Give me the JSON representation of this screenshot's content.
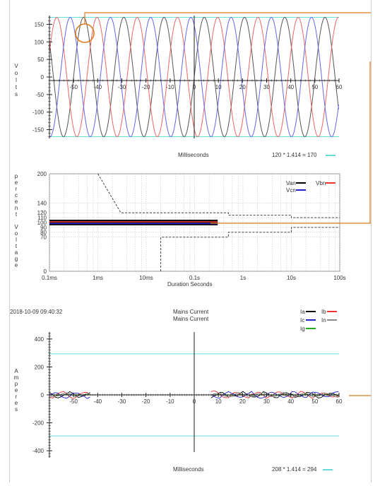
{
  "voltage_chart": {
    "ylabel_letters": [
      "V",
      "o",
      "l",
      "t",
      "s"
    ],
    "xlabel": "Milliseconds",
    "formula": "120 * 1.414 = 170",
    "colors": {
      "a": "#555555",
      "b": "#ee6666",
      "c": "#6666ee",
      "limit": "#66dddd"
    }
  },
  "ride_chart": {
    "ylabel_letters": [
      "p",
      "e",
      "r",
      "c",
      "e",
      "n",
      "t",
      "",
      "V",
      "o",
      "l",
      "t",
      "a",
      "g",
      "e"
    ],
    "xlabel": "Duration Seconds",
    "legend": [
      {
        "label": "Van",
        "color": "#000000"
      },
      {
        "label": "Vbn",
        "color": "#ee3333"
      },
      {
        "label": "Vcn",
        "color": "#2222cc"
      }
    ]
  },
  "current_chart": {
    "timestamp": "2018-10-09 09:40:32",
    "title_line1": "Mains Current",
    "title_line2": "Mains Current",
    "ylabel_letters": [
      "A",
      "m",
      "p",
      "e",
      "r",
      "e",
      "s"
    ],
    "xlabel": "Milliseconds",
    "formula": "208 * 1.414 = 294",
    "legend": [
      {
        "label": "Ia",
        "color": "#000000"
      },
      {
        "label": "Ib",
        "color": "#ee3333"
      },
      {
        "label": "Ic",
        "color": "#2222cc"
      },
      {
        "label": "In",
        "color": "#888888"
      },
      {
        "label": "Ig",
        "color": "#22aa22"
      }
    ]
  },
  "chart_data": [
    {
      "type": "line",
      "x_ticks": [
        -50,
        -40,
        -30,
        -20,
        -10,
        0,
        10,
        20,
        30,
        40,
        50,
        60
      ],
      "xlim": [
        -60,
        60
      ],
      "y_ticks": [
        150,
        100,
        50,
        0,
        -50,
        -100,
        -150
      ],
      "ylim": [
        -175,
        175
      ],
      "xlabel": "Milliseconds",
      "ylabel": "Volts",
      "series": [
        {
          "phase": "A",
          "amplitude": 170,
          "period_ms": 16.67,
          "phase_deg": 0
        },
        {
          "phase": "B",
          "amplitude": 170,
          "period_ms": 16.67,
          "phase_deg": -120
        },
        {
          "phase": "C",
          "amplitude": 170,
          "period_ms": 16.67,
          "phase_deg": 120
        }
      ],
      "limit_lines": [
        170,
        -170
      ]
    },
    {
      "type": "line",
      "x_scale": "log",
      "x_ticks": [
        "0.1ms",
        "1ms",
        "10ms",
        "0.1s",
        "1s",
        "10s",
        "100s"
      ],
      "xlim_seconds": [
        0.0001,
        100
      ],
      "y_ticks": [
        0,
        70,
        80,
        90,
        100,
        110,
        120,
        140,
        200
      ],
      "ylim": [
        0,
        200
      ],
      "xlabel": "Duration Seconds",
      "ylabel": "percent Voltage",
      "upper_envelope": [
        [
          0.001,
          200
        ],
        [
          0.003,
          120
        ],
        [
          0.5,
          120
        ],
        [
          10,
          110
        ],
        [
          100,
          110
        ]
      ],
      "lower_envelope": [
        [
          0.02,
          0
        ],
        [
          0.02,
          70
        ],
        [
          0.5,
          70
        ],
        [
          0.5,
          80
        ],
        [
          10,
          80
        ],
        [
          10,
          90
        ],
        [
          100,
          90
        ]
      ],
      "measurement": {
        "from_s": 0.0001,
        "to_s": 0.3,
        "value": 100
      },
      "series": [
        "Van",
        "Vbn",
        "Vcn"
      ]
    },
    {
      "type": "line",
      "x_ticks": [
        -50,
        -40,
        -30,
        -20,
        -10,
        0,
        10,
        20,
        30,
        40,
        50,
        60
      ],
      "xlim": [
        -60,
        60
      ],
      "y_ticks": [
        400,
        200,
        0,
        -200,
        -400
      ],
      "ylim": [
        -450,
        450
      ],
      "xlabel": "Milliseconds",
      "ylabel": "Amperes",
      "limit_lines": [
        294,
        -294
      ],
      "series": [
        "Ia",
        "Ib",
        "Ic",
        "In",
        "Ig"
      ]
    }
  ]
}
